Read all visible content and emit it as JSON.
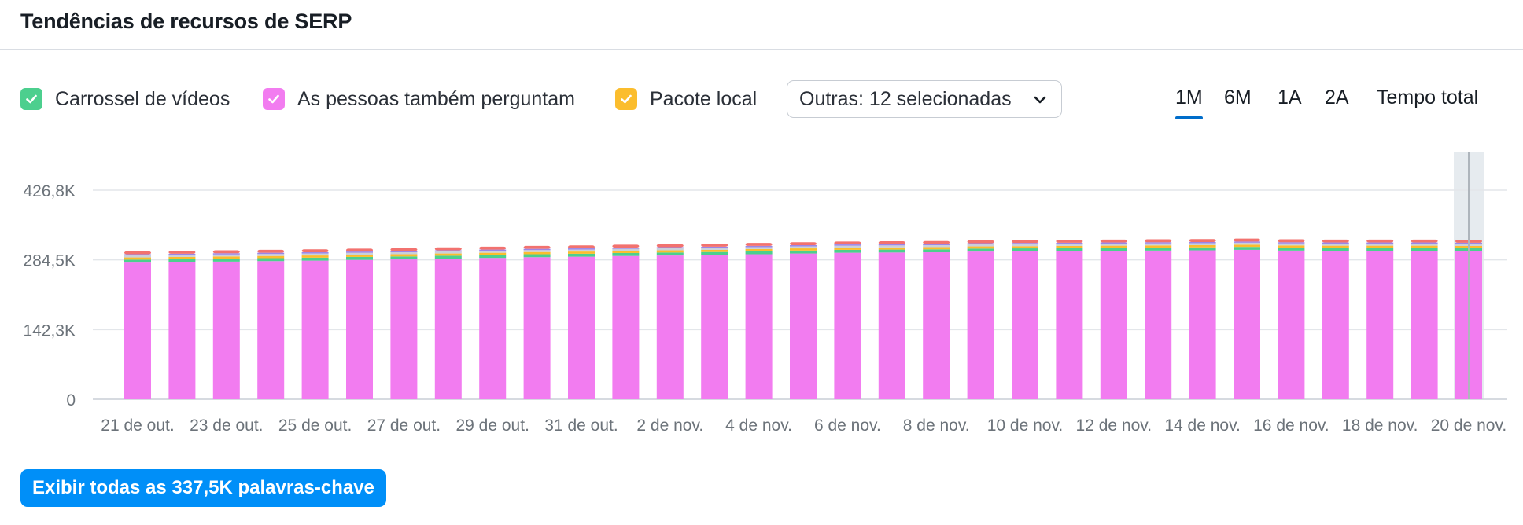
{
  "header": {
    "title": "Tendências de recursos de SERP"
  },
  "legend": {
    "items": [
      {
        "label": "Carrossel de vídeos",
        "color": "#4ccf8e"
      },
      {
        "label": "As pessoas também perguntam",
        "color": "#f27cf0"
      },
      {
        "label": "Pacote local",
        "color": "#fbbd2d"
      }
    ],
    "dropdown_label": "Outras: 12 selecionadas"
  },
  "period_tabs": {
    "items": [
      "1M",
      "6M",
      "1A",
      "2A",
      "Tempo total"
    ],
    "active": "1M"
  },
  "cta": {
    "label": "Exibir todas as 337,5K palavras-chave"
  },
  "colors": {
    "accent": "#006dca",
    "button": "#008ff8",
    "bar_main": "#f27cf0",
    "grid": "#e3e6ea",
    "hover_band": "#e6ebef"
  },
  "chart_data": {
    "type": "bar",
    "stacked": true,
    "y_ticks": [
      "0",
      "142,3K",
      "284,5K",
      "426,8K"
    ],
    "ylim": [
      0,
      426800
    ],
    "x_ticks": [
      "21 de out.",
      "23 de out.",
      "25 de out.",
      "27 de out.",
      "29 de out.",
      "31 de out.",
      "2 de nov.",
      "4 de nov.",
      "6 de nov.",
      "8 de nov.",
      "10 de nov.",
      "12 de nov.",
      "14 de nov.",
      "16 de nov.",
      "18 de nov.",
      "20 de nov."
    ],
    "bar_count": 31,
    "highlighted_index": 30,
    "grid": true,
    "series": [
      {
        "name": "As pessoas também perguntam",
        "color": "#f27cf0",
        "values": [
          279000,
          280000,
          281000,
          282000,
          283000,
          284500,
          285500,
          287000,
          288500,
          290000,
          291000,
          292500,
          293500,
          294500,
          296000,
          297500,
          299000,
          299500,
          300000,
          301500,
          302000,
          302500,
          303000,
          303500,
          304000,
          305000,
          303500,
          303000,
          303000,
          303000,
          302500
        ]
      },
      {
        "name": "Carrossel de vídeos",
        "color": "#4ccf8e",
        "values": [
          6000,
          6000,
          6000,
          6000,
          6000,
          6000,
          6000,
          6000,
          6000,
          6000,
          6000,
          6000,
          6000,
          6000,
          6000,
          6000,
          6000,
          6000,
          6000,
          6000,
          6000,
          6000,
          6000,
          6000,
          6000,
          6000,
          6000,
          6000,
          6000,
          6000,
          6000
        ]
      },
      {
        "name": "Pacote local",
        "color": "#fbbd2d",
        "values": [
          4500,
          4500,
          4500,
          4500,
          4500,
          4500,
          4500,
          4500,
          4500,
          4500,
          4500,
          4500,
          4500,
          4500,
          4500,
          4500,
          4500,
          4500,
          4500,
          4500,
          4500,
          4500,
          4500,
          4500,
          4500,
          4500,
          4500,
          4500,
          4500,
          4500,
          4500
        ]
      },
      {
        "color": "#c9d1da",
        "values": [
          4000,
          4000,
          4000,
          4000,
          4000,
          4000,
          4000,
          4000,
          4000,
          4000,
          4000,
          4000,
          4000,
          4000,
          4000,
          4000,
          4000,
          4000,
          4000,
          4000,
          4000,
          4000,
          4000,
          4000,
          4000,
          4000,
          4000,
          4000,
          4000,
          4000,
          4000
        ]
      },
      {
        "color": "#9b86e8",
        "values": [
          2500,
          2500,
          2500,
          2500,
          2500,
          2500,
          2500,
          2500,
          2500,
          2500,
          2500,
          2500,
          2500,
          2500,
          2500,
          2500,
          2500,
          2500,
          2500,
          2500,
          2500,
          2500,
          2500,
          2500,
          2500,
          2500,
          2500,
          2500,
          2500,
          2500,
          2500
        ]
      },
      {
        "color": "#f2726f",
        "values": [
          6000,
          6000,
          6000,
          6000,
          6000,
          6000,
          6000,
          6000,
          6000,
          6000,
          6000,
          6000,
          6000,
          6000,
          6000,
          6000,
          6000,
          6000,
          6000,
          6000,
          6000,
          6000,
          6000,
          6000,
          6000,
          6000,
          6000,
          6000,
          6000,
          6000,
          6000
        ]
      }
    ]
  }
}
